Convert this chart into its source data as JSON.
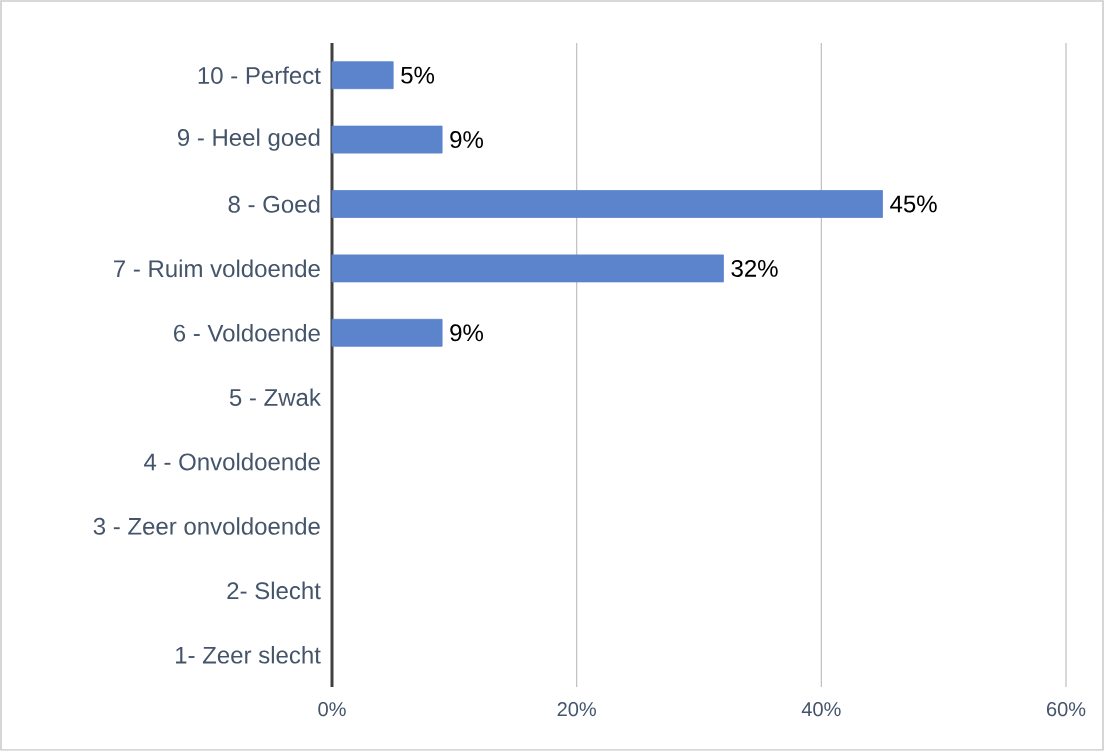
{
  "chart_data": {
    "type": "bar",
    "orientation": "horizontal",
    "categories": [
      "10 - Perfect",
      "9 - Heel goed",
      "8 - Goed",
      "7 - Ruim voldoende",
      "6 - Voldoende",
      "5 - Zwak",
      "4 - Onvoldoende",
      "3 - Zeer onvoldoende",
      "2- Slecht",
      "1- Zeer slecht"
    ],
    "values": [
      5,
      9,
      45,
      32,
      9,
      null,
      null,
      null,
      null,
      null
    ],
    "value_labels": [
      "5%",
      "9%",
      "45%",
      "32%",
      "9%",
      null,
      null,
      null,
      null,
      null
    ],
    "color": "#5b84cd",
    "xlim": [
      0,
      60
    ],
    "xticks": [
      {
        "value": 0,
        "label": "0%"
      },
      {
        "value": 20,
        "label": "20%"
      },
      {
        "value": 40,
        "label": "40%"
      },
      {
        "value": 60,
        "label": "60%"
      }
    ],
    "grid": "x"
  }
}
